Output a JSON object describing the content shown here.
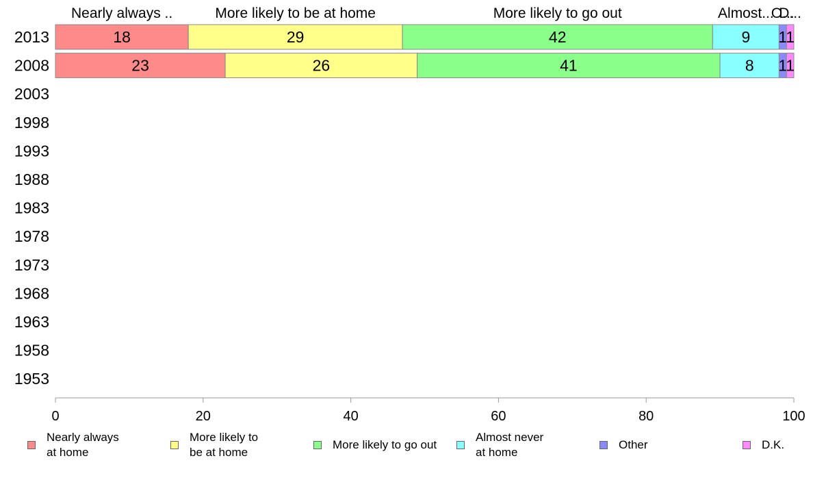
{
  "chart_data": {
    "type": "bar",
    "orientation": "horizontal",
    "stacked": true,
    "categories": [
      "2013",
      "2008",
      "2003",
      "1998",
      "1993",
      "1988",
      "1983",
      "1978",
      "1973",
      "1968",
      "1963",
      "1958",
      "1953"
    ],
    "series": [
      {
        "name": "Nearly always at home",
        "legend_label": "Nearly always\nat home",
        "top_label": "Nearly always ..",
        "color": "#ff8a8a",
        "values": [
          18,
          23,
          null,
          null,
          null,
          null,
          null,
          null,
          null,
          null,
          null,
          null,
          null
        ]
      },
      {
        "name": "More likely to be at home",
        "legend_label": "More likely to\nbe at home",
        "top_label": "More likely to be at home",
        "color": "#ffff8a",
        "values": [
          29,
          26,
          null,
          null,
          null,
          null,
          null,
          null,
          null,
          null,
          null,
          null,
          null
        ]
      },
      {
        "name": "More likely to go out",
        "legend_label": "More likely to go out",
        "top_label": "More likely to go out",
        "color": "#8aff8a",
        "values": [
          42,
          41,
          null,
          null,
          null,
          null,
          null,
          null,
          null,
          null,
          null,
          null,
          null
        ]
      },
      {
        "name": "Almost never at home",
        "legend_label": "Almost never\nat home",
        "top_label": "Almost...",
        "color": "#8affff",
        "values": [
          9,
          8,
          null,
          null,
          null,
          null,
          null,
          null,
          null,
          null,
          null,
          null,
          null
        ]
      },
      {
        "name": "Other",
        "legend_label": "Other",
        "top_label": "O...",
        "color": "#8a8aff",
        "values": [
          1,
          1,
          null,
          null,
          null,
          null,
          null,
          null,
          null,
          null,
          null,
          null,
          null
        ]
      },
      {
        "name": "D.K.",
        "legend_label": "D.K.",
        "top_label": "D...",
        "color": "#ff8aff",
        "values": [
          1,
          1,
          null,
          null,
          null,
          null,
          null,
          null,
          null,
          null,
          null,
          null,
          null
        ]
      }
    ],
    "xlim": [
      0,
      100
    ],
    "xticks": [
      0,
      20,
      40,
      60,
      80,
      100
    ],
    "title": "",
    "xlabel": "",
    "ylabel": "",
    "grid": false,
    "legend_position": "bottom"
  }
}
